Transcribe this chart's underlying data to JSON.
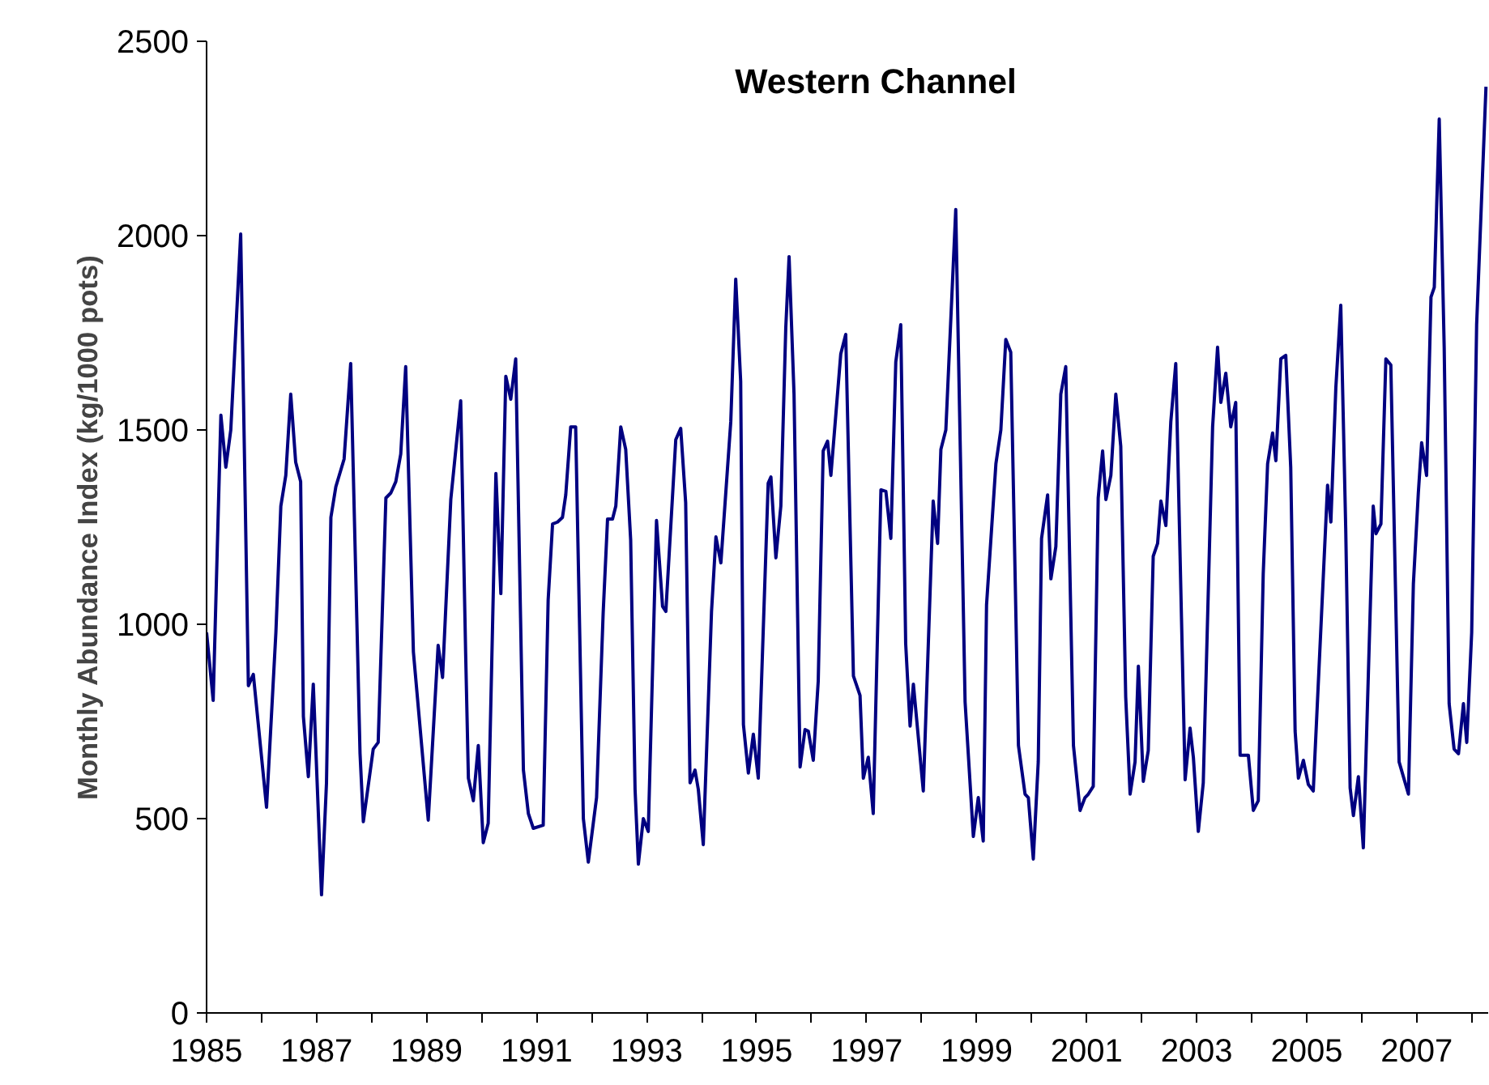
{
  "chart_data": {
    "type": "line",
    "title": "Western Channel",
    "ylabel": "Monthly Abundance Index (kg/1000 pots)",
    "xlim": [
      1985,
      2008.3
    ],
    "xticks": [
      1985,
      {
        "value": 1986,
        "label": null
      },
      1987,
      {
        "value": 1988,
        "label": null
      },
      1989,
      {
        "value": 1990,
        "label": null
      },
      1991,
      {
        "value": 1992,
        "label": null
      },
      1993,
      {
        "value": 1994,
        "label": null
      },
      1995,
      {
        "value": 1996,
        "label": null
      },
      1997,
      {
        "value": 1998,
        "label": null
      },
      1999,
      {
        "value": 2000,
        "label": null
      },
      2001,
      {
        "value": 2002,
        "label": null
      },
      2003,
      {
        "value": 2004,
        "label": null
      },
      2005,
      {
        "value": 2006,
        "label": null
      },
      2007,
      {
        "value": 2008,
        "label": null
      }
    ],
    "ylim": [
      0,
      2500
    ],
    "yticks": [
      0,
      500,
      1000,
      1500,
      2000,
      2500
    ],
    "line_style": "solid",
    "series": [
      {
        "color": "#000080",
        "x": [
          1985.0,
          1985.12,
          1985.26,
          1985.35,
          1985.44,
          1985.62,
          1985.76,
          1985.85,
          1986.09,
          1986.26,
          1986.35,
          1986.44,
          1986.53,
          1986.62,
          1986.71,
          1986.76,
          1986.85,
          1986.94,
          1987.09,
          1987.18,
          1987.26,
          1987.35,
          1987.5,
          1987.62,
          1987.79,
          1987.85,
          1988.03,
          1988.12,
          1988.26,
          1988.35,
          1988.44,
          1988.53,
          1988.62,
          1988.76,
          1989.03,
          1989.21,
          1989.29,
          1989.44,
          1989.62,
          1989.71,
          1989.76,
          1989.85,
          1989.94,
          1990.03,
          1990.12,
          1990.26,
          1990.35,
          1990.44,
          1990.53,
          1990.62,
          1990.76,
          1990.85,
          1990.94,
          1991.12,
          1991.21,
          1991.29,
          1991.38,
          1991.47,
          1991.53,
          1991.62,
          1991.71,
          1991.85,
          1991.94,
          1992.09,
          1992.21,
          1992.29,
          1992.38,
          1992.44,
          1992.53,
          1992.62,
          1992.71,
          1992.79,
          1992.85,
          1992.94,
          1993.03,
          1993.18,
          1993.29,
          1993.35,
          1993.53,
          1993.62,
          1993.71,
          1993.79,
          1993.88,
          1993.94,
          1994.03,
          1994.18,
          1994.26,
          1994.35,
          1994.53,
          1994.62,
          1994.71,
          1994.76,
          1994.85,
          1994.94,
          1995.03,
          1995.21,
          1995.26,
          1995.35,
          1995.44,
          1995.53,
          1995.59,
          1995.68,
          1995.79,
          1995.88,
          1995.94,
          1996.03,
          1996.12,
          1996.21,
          1996.29,
          1996.35,
          1996.53,
          1996.62,
          1996.76,
          1996.88,
          1996.94,
          1997.03,
          1997.12,
          1997.26,
          1997.35,
          1997.44,
          1997.53,
          1997.62,
          1997.71,
          1997.79,
          1997.85,
          1998.03,
          1998.21,
          1998.29,
          1998.35,
          1998.44,
          1998.62,
          1998.79,
          1998.94,
          1999.03,
          1999.12,
          1999.18,
          1999.35,
          1999.44,
          1999.53,
          1999.62,
          1999.76,
          1999.88,
          1999.94,
          2000.03,
          2000.12,
          2000.18,
          2000.29,
          2000.35,
          2000.44,
          2000.53,
          2000.62,
          2000.76,
          2000.88,
          2000.97,
          2001.03,
          2001.12,
          2001.21,
          2001.29,
          2001.35,
          2001.44,
          2001.53,
          2001.62,
          2001.71,
          2001.79,
          2001.88,
          2001.94,
          2002.03,
          2002.12,
          2002.21,
          2002.29,
          2002.35,
          2002.44,
          2002.53,
          2002.62,
          2002.79,
          2002.88,
          2002.94,
          2003.03,
          2003.12,
          2003.29,
          2003.38,
          2003.44,
          2003.53,
          2003.62,
          2003.71,
          2003.79,
          2003.94,
          2004.03,
          2004.12,
          2004.21,
          2004.29,
          2004.38,
          2004.44,
          2004.53,
          2004.62,
          2004.71,
          2004.79,
          2004.85,
          2004.94,
          2005.03,
          2005.12,
          2005.38,
          2005.44,
          2005.53,
          2005.62,
          2005.71,
          2005.79,
          2005.85,
          2005.94,
          2006.03,
          2006.21,
          2006.26,
          2006.35,
          2006.44,
          2006.53,
          2006.68,
          2006.85,
          2006.94,
          2007.03,
          2007.09,
          2007.18,
          2007.26,
          2007.32,
          2007.41,
          2007.5,
          2007.59,
          2007.68,
          2007.76,
          2007.85,
          2007.91,
          2008.0,
          2008.09,
          2008.26
        ],
        "values": [
          979,
          804,
          1538,
          1404,
          1500,
          2004,
          842,
          871,
          529,
          979,
          1304,
          1383,
          1592,
          1417,
          1367,
          763,
          608,
          846,
          304,
          592,
          1275,
          1354,
          1425,
          1671,
          667,
          492,
          679,
          696,
          1325,
          1338,
          1367,
          1438,
          1663,
          929,
          496,
          946,
          863,
          1321,
          1575,
          925,
          604,
          546,
          688,
          438,
          488,
          1388,
          1079,
          1638,
          1579,
          1683,
          625,
          513,
          475,
          483,
          1063,
          1258,
          1263,
          1275,
          1333,
          1508,
          1508,
          500,
          388,
          554,
          1029,
          1271,
          1271,
          1304,
          1508,
          1450,
          1217,
          575,
          383,
          500,
          467,
          1267,
          1046,
          1033,
          1475,
          1504,
          1313,
          592,
          625,
          575,
          433,
          1033,
          1225,
          1158,
          1521,
          1888,
          1625,
          742,
          617,
          717,
          604,
          1363,
          1379,
          1171,
          1304,
          1763,
          1946,
          1592,
          633,
          729,
          725,
          650,
          854,
          1446,
          1471,
          1383,
          1696,
          1746,
          867,
          817,
          604,
          658,
          513,
          1346,
          1342,
          1221,
          1675,
          1771,
          950,
          738,
          846,
          571,
          1317,
          1208,
          1450,
          1500,
          2067,
          800,
          454,
          554,
          442,
          1050,
          1413,
          1500,
          1733,
          1700,
          688,
          563,
          554,
          396,
          646,
          1221,
          1333,
          1117,
          1200,
          1592,
          1663,
          688,
          521,
          554,
          563,
          583,
          1325,
          1446,
          1321,
          1383,
          1592,
          1458,
          813,
          563,
          646,
          892,
          596,
          675,
          1175,
          1208,
          1317,
          1254,
          1521,
          1671,
          600,
          733,
          658,
          467,
          592,
          1508,
          1713,
          1571,
          1646,
          1508,
          1571,
          663,
          663,
          521,
          546,
          1129,
          1413,
          1492,
          1421,
          1683,
          1692,
          1404,
          725,
          604,
          650,
          588,
          571,
          1358,
          1263,
          1608,
          1821,
          1246,
          579,
          508,
          608,
          425,
          1304,
          1233,
          1258,
          1683,
          1667,
          646,
          563,
          1104,
          1338,
          1467,
          1383,
          1842,
          1867,
          2300,
          1713,
          796,
          679,
          667,
          796,
          696,
          979,
          1771,
          2383
        ]
      }
    ]
  }
}
